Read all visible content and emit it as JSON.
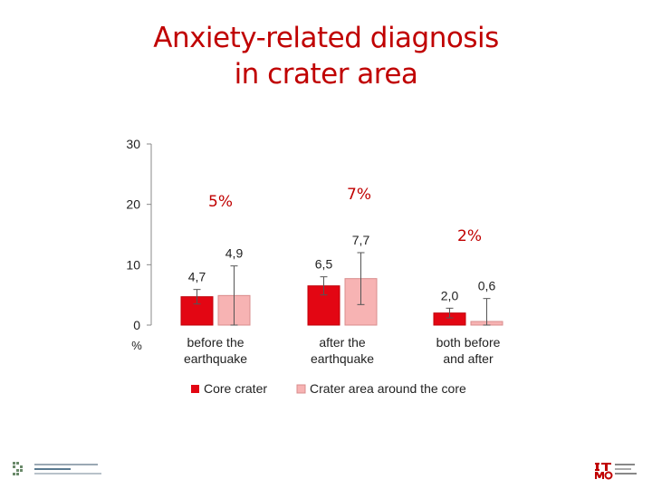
{
  "title": {
    "line1": "Anxiety-related diagnosis",
    "line2": "in crater area"
  },
  "percent_notes": [
    "5%",
    "7%",
    "2%"
  ],
  "colors": {
    "title": "#c00000",
    "core": "#e30613",
    "around": "#f7b3b3",
    "axis": "#888888"
  },
  "chart_data": {
    "type": "bar",
    "categories": [
      [
        "before the",
        "earthquake"
      ],
      [
        "after the",
        "earthquake"
      ],
      [
        "both before",
        "and after"
      ]
    ],
    "series": [
      {
        "name": "Core crater",
        "values": [
          4.7,
          6.5,
          2.0
        ],
        "labels": [
          "4,7",
          "6,5",
          "2,0"
        ],
        "error": [
          1.2,
          1.5,
          0.8
        ]
      },
      {
        "name": "Crater area around the core",
        "values": [
          4.9,
          7.7,
          0.6
        ],
        "labels": [
          "4,9",
          "7,7",
          "0,6"
        ],
        "error": [
          4.9,
          4.3,
          3.8
        ]
      }
    ],
    "yticks": [
      0,
      10,
      20,
      30
    ],
    "ylim": [
      0,
      30
    ],
    "ylabel": "%",
    "legend": "bottom",
    "error_bars": true
  },
  "logos": [
    "left-institute-logo",
    "istmo-logo"
  ]
}
